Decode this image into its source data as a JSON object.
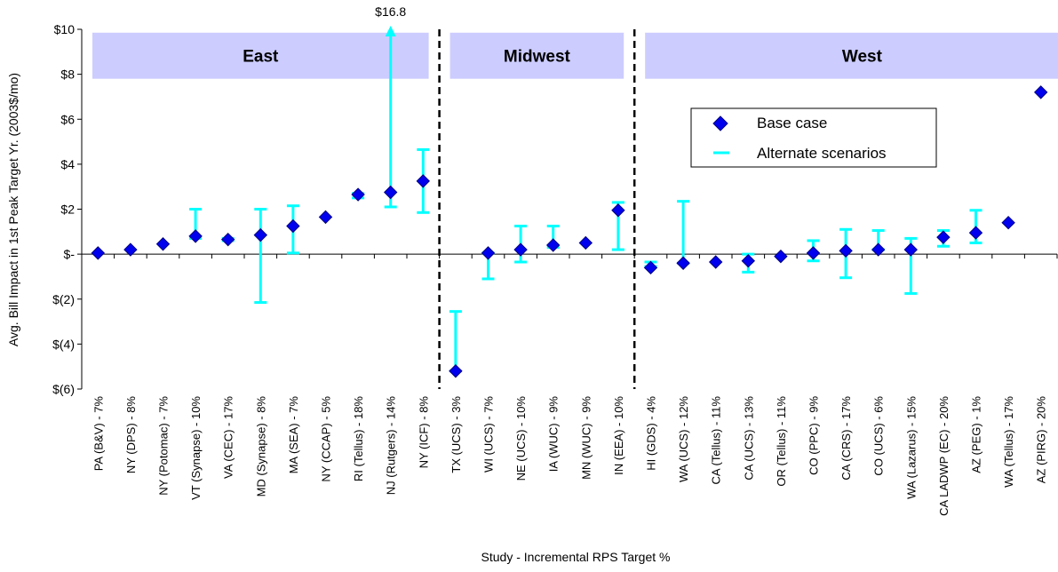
{
  "chart_data": {
    "type": "scatter",
    "title": "",
    "xlabel": "Study - Incremental RPS Target %",
    "ylabel": "Avg. Bill Impact in 1st Peak Target Yr. (2003$/mo)",
    "ylim": [
      -6,
      10
    ],
    "yticks": [
      {
        "value": 10,
        "label": "$10"
      },
      {
        "value": 8,
        "label": "$8"
      },
      {
        "value": 6,
        "label": "$6"
      },
      {
        "value": 4,
        "label": "$4"
      },
      {
        "value": 2,
        "label": "$2"
      },
      {
        "value": 0,
        "label": "$-"
      },
      {
        "value": -2,
        "label": "$(2)"
      },
      {
        "value": -4,
        "label": "$(4)"
      },
      {
        "value": -6,
        "label": "$(6)"
      }
    ],
    "grid": false,
    "legend": {
      "position": "right",
      "entries": [
        {
          "name": "Base case",
          "marker": "diamond",
          "color": "#0000ee"
        },
        {
          "name": "Alternate scenarios",
          "marker": "line",
          "color": "#00ffff"
        }
      ]
    },
    "regions": [
      {
        "name": "East",
        "start": 0,
        "end": 10
      },
      {
        "name": "Midwest",
        "start": 11,
        "end": 16
      },
      {
        "name": "West",
        "start": 17,
        "end": 30
      }
    ],
    "categories": [
      "PA (B&V) - 7%",
      "NY (DPS) - 8%",
      "NY (Potomac) - 7%",
      "VT (Synapse) - 10%",
      "VA (CEC) - 17%",
      "MD (Synapse) - 8%",
      "MA (SEA) - 7%",
      "NY (CCAP) - 5%",
      "RI (Tellus) - 18%",
      "NJ (Rutgers) - 14%",
      "NY (ICF) - 8%",
      "TX (UCS) - 3%",
      "WI (UCS) - 7%",
      "NE (UCS) - 10%",
      "IA (WUC) - 9%",
      "MN (WUC) - 9%",
      "IN (EEA) - 10%",
      "HI (GDS) - 4%",
      "WA (UCS) - 12%",
      "CA (Tellus) - 11%",
      "CA (UCS) - 13%",
      "OR (Tellus) - 11%",
      "CO (PPC) - 9%",
      "CA (CRS) - 17%",
      "CO (UCS) - 6%",
      "WA (Lazarus) - 15%",
      "CA LADWP (EC) - 20%",
      "AZ (PEG) - 1%",
      "WA (Tellus) - 17%",
      "AZ (PIRG) - 20%"
    ],
    "base_case": [
      0.05,
      0.2,
      0.45,
      0.8,
      0.65,
      0.85,
      1.25,
      1.65,
      2.65,
      2.75,
      3.25,
      -5.2,
      0.05,
      0.2,
      0.4,
      0.5,
      1.95,
      -0.6,
      -0.4,
      -0.35,
      -0.3,
      -0.1,
      0.05,
      0.15,
      0.2,
      0.2,
      0.75,
      0.95,
      1.4,
      7.2
    ],
    "alternate_range": [
      null,
      null,
      null,
      [
        0.7,
        2.0
      ],
      [
        0.6,
        0.7
      ],
      [
        -2.15,
        2.0
      ],
      [
        0.05,
        2.15
      ],
      null,
      [
        2.5,
        2.7
      ],
      [
        2.1,
        16.8
      ],
      [
        1.85,
        4.65
      ],
      [
        -5.2,
        -2.55
      ],
      [
        -1.1,
        0.05
      ],
      [
        -0.35,
        1.25
      ],
      [
        0.3,
        1.25
      ],
      null,
      [
        0.2,
        2.3
      ],
      [
        -0.55,
        -0.35
      ],
      [
        -0.4,
        2.35
      ],
      null,
      [
        -0.8,
        0.0
      ],
      null,
      [
        -0.3,
        0.6
      ],
      [
        -1.05,
        1.1
      ],
      [
        0.2,
        1.05
      ],
      [
        -1.75,
        0.7
      ],
      [
        0.35,
        1.05
      ],
      [
        0.5,
        1.95
      ],
      null,
      null
    ],
    "annotations": [
      {
        "text": "$16.8",
        "category_index": 9,
        "value": 16.8
      }
    ]
  }
}
